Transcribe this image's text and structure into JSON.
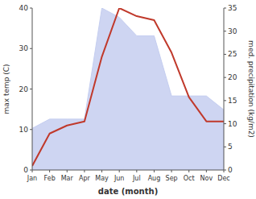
{
  "chart_data": {
    "type": "line",
    "categories": [
      "Jan",
      "Feb",
      "Mar",
      "Apr",
      "May",
      "Jun",
      "Jul",
      "Aug",
      "Sep",
      "Oct",
      "Nov",
      "Dec"
    ],
    "xlabel": "date (month)",
    "ylabel": "max temp (C)",
    "y2label": "med. precipitation (kg/m2)",
    "series": [
      {
        "type": "area",
        "axis": "y2",
        "color": "#c5cef0",
        "values": [
          9,
          11,
          11,
          11,
          35,
          33,
          29,
          29,
          16,
          16,
          16,
          13
        ]
      },
      {
        "type": "line",
        "color": "#c0392b",
        "values": [
          1,
          9,
          11,
          12,
          28,
          40,
          38,
          37,
          29,
          18,
          12,
          12
        ]
      }
    ],
    "ylim": [
      0,
      40
    ],
    "yticks": [
      0,
      10,
      20,
      30,
      40
    ],
    "y2lim": [
      0,
      35
    ],
    "y2ticks": [
      0,
      5,
      10,
      15,
      20,
      25,
      30,
      35
    ],
    "grid": false
  }
}
